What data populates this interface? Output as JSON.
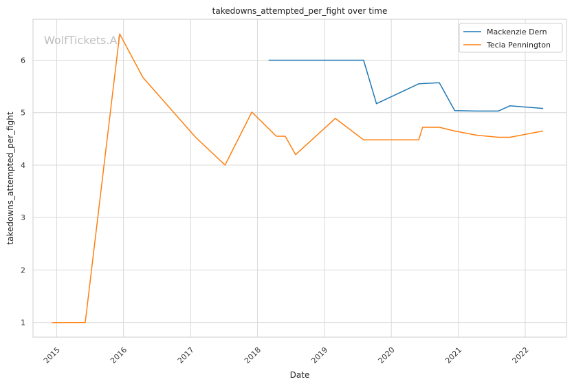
{
  "watermark": "WolfTickets.AI",
  "chart_data": {
    "type": "line",
    "title": "takedowns_attempted_per_fight over time",
    "xlabel": "Date",
    "ylabel": "takedowns_attempted_per_fight",
    "x_ticks": [
      "2015",
      "2016",
      "2017",
      "2018",
      "2019",
      "2020",
      "2021",
      "2022"
    ],
    "y_ticks": [
      1,
      2,
      3,
      4,
      5,
      6
    ],
    "xlim": [
      "2014-08-25",
      "2022-08-14"
    ],
    "ylim": [
      0.72,
      6.78
    ],
    "grid": true,
    "legend_position": "top-right",
    "series": [
      {
        "name": "Mackenzie Dern",
        "color": "#1f77b4",
        "points": [
          [
            "2018-03-03",
            6.0
          ],
          [
            "2019-08-03",
            6.0
          ],
          [
            "2019-10-12",
            5.17
          ],
          [
            "2020-05-30",
            5.55
          ],
          [
            "2020-09-19",
            5.57
          ],
          [
            "2020-12-12",
            5.04
          ],
          [
            "2021-04-10",
            5.03
          ],
          [
            "2021-08-07",
            5.03
          ],
          [
            "2021-10-09",
            5.13
          ],
          [
            "2022-04-09",
            5.08
          ]
        ]
      },
      {
        "name": "Tecia Pennington",
        "color": "#ff7f0e",
        "points": [
          [
            "2014-12-06",
            1.0
          ],
          [
            "2015-06-06",
            1.0
          ],
          [
            "2015-12-11",
            6.5
          ],
          [
            "2016-04-16",
            5.67
          ],
          [
            "2017-01-28",
            4.53
          ],
          [
            "2017-07-08",
            4.0
          ],
          [
            "2017-12-01",
            5.01
          ],
          [
            "2018-04-14",
            4.55
          ],
          [
            "2018-06-01",
            4.55
          ],
          [
            "2018-07-28",
            4.2
          ],
          [
            "2019-03-02",
            4.89
          ],
          [
            "2019-08-03",
            4.48
          ],
          [
            "2020-05-30",
            4.48
          ],
          [
            "2020-06-20",
            4.72
          ],
          [
            "2020-09-19",
            4.72
          ],
          [
            "2020-12-12",
            4.65
          ],
          [
            "2021-04-10",
            4.57
          ],
          [
            "2021-08-07",
            4.53
          ],
          [
            "2021-10-09",
            4.53
          ],
          [
            "2022-04-09",
            4.65
          ]
        ]
      }
    ]
  }
}
